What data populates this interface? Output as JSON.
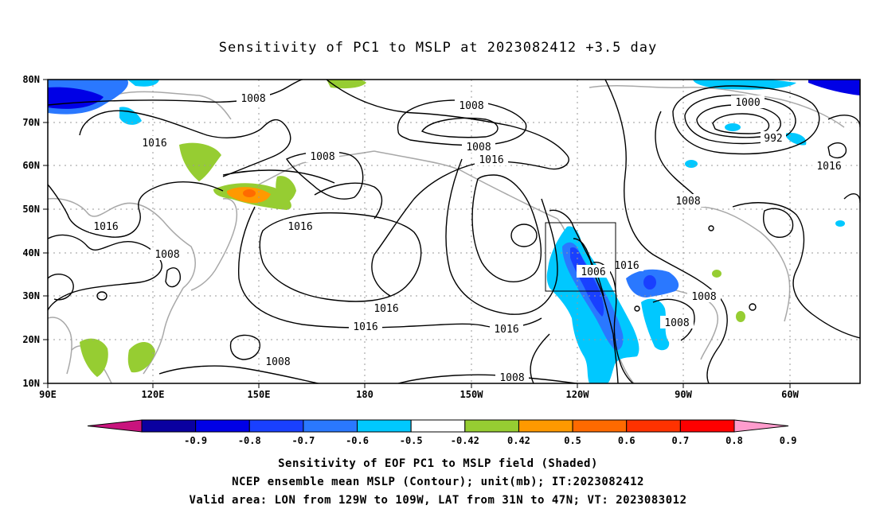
{
  "title": "Sensitivity of PC1 to MSLP at 2023082412 +3.5 day",
  "axes": {
    "lon_labels": [
      "90E",
      "120E",
      "150E",
      "180",
      "150W",
      "120W",
      "90W",
      "60W"
    ],
    "lat_labels": [
      "80N",
      "70N",
      "60N",
      "50N",
      "40N",
      "30N",
      "20N",
      "10N"
    ]
  },
  "contour_labels": [
    "1008",
    "1016",
    "1008",
    "1008",
    "1016",
    "1016",
    "1016",
    "1008",
    "1016",
    "1016",
    "1016",
    "1008",
    "1008",
    "1016",
    "1000",
    "992",
    "1016",
    "1008",
    "1008",
    "1016",
    "1008",
    "1006",
    "1008"
  ],
  "colorbar": {
    "labels": [
      "-0.9",
      "-0.8",
      "-0.7",
      "-0.6",
      "-0.5",
      "-0.42",
      "0.42",
      "0.5",
      "0.6",
      "0.7",
      "0.8",
      "0.9"
    ],
    "colors": [
      "#c8147d",
      "#0a00a0",
      "#0000e6",
      "#1940ff",
      "#2a78ff",
      "#00c8ff",
      "#ffffff",
      "#96cd32",
      "#ff9900",
      "#ff6a00",
      "#ff3200",
      "#ff0000",
      "#ff9ccd"
    ]
  },
  "caption": {
    "line1": "Sensitivity of EOF PC1 to MSLP field (Shaded)",
    "line2": "NCEP ensemble mean MSLP (Contour); unit(mb); IT:2023082412",
    "line3": "Valid area: LON from 129W to 109W, LAT from 31N to 47N; VT: 2023083012"
  }
}
